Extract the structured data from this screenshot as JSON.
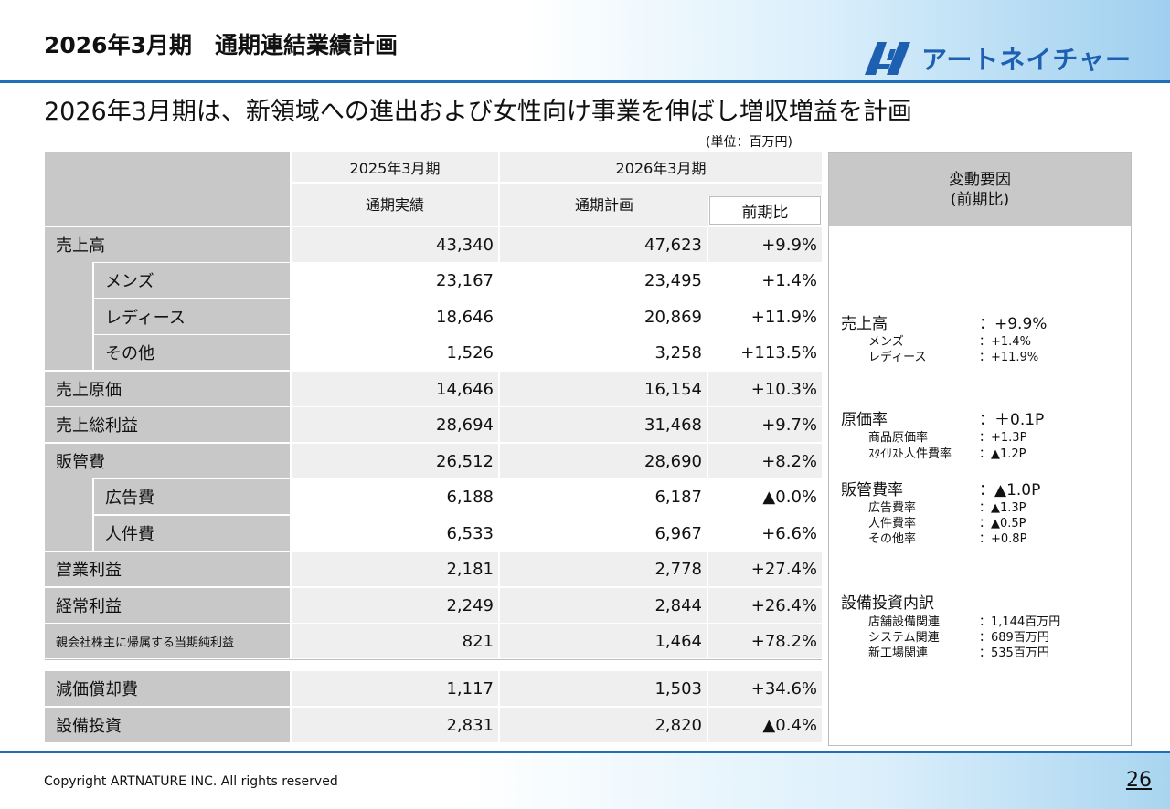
{
  "header": {
    "title": "2026年3月期　通期連結業績計画",
    "logo_text": "アートネイチャー",
    "logo_mark": "AN-logo-icon"
  },
  "subtitle": "2026年3月期は、新領域への進出および女性向け事業を伸ばし増収増益を計画",
  "unit_note": "(単位：百万円)",
  "table": {
    "col_headers": {
      "fy2025": "2025年3月期",
      "fy2026": "2026年3月期",
      "actual": "通期実績",
      "plan": "通期計画",
      "yoy": "前期比"
    },
    "rows": [
      {
        "label": "売上高",
        "actual": "43,340",
        "plan": "47,623",
        "yoy": "+9.9%"
      },
      {
        "label": "メンズ",
        "actual": "23,167",
        "plan": "23,495",
        "yoy": "+1.4%"
      },
      {
        "label": "レディース",
        "actual": "18,646",
        "plan": "20,869",
        "yoy": "+11.9%"
      },
      {
        "label": "その他",
        "actual": "1,526",
        "plan": "3,258",
        "yoy": "+113.5%"
      },
      {
        "label": "売上原価",
        "actual": "14,646",
        "plan": "16,154",
        "yoy": "+10.3%"
      },
      {
        "label": "売上総利益",
        "actual": "28,694",
        "plan": "31,468",
        "yoy": "+9.7%"
      },
      {
        "label": "販管費",
        "actual": "26,512",
        "plan": "28,690",
        "yoy": "+8.2%"
      },
      {
        "label": "広告費",
        "actual": "6,188",
        "plan": "6,187",
        "yoy": "▲0.0%"
      },
      {
        "label": "人件費",
        "actual": "6,533",
        "plan": "6,967",
        "yoy": "+6.6%"
      },
      {
        "label": "営業利益",
        "actual": "2,181",
        "plan": "2,778",
        "yoy": "+27.4%"
      },
      {
        "label": "経常利益",
        "actual": "2,249",
        "plan": "2,844",
        "yoy": "+26.4%"
      },
      {
        "label": "親会社株主に帰属する当期純利益",
        "actual": "821",
        "plan": "1,464",
        "yoy": "+78.2%"
      },
      {
        "label": "減価償却費",
        "actual": "1,117",
        "plan": "1,503",
        "yoy": "+34.6%"
      },
      {
        "label": "設備投資",
        "actual": "2,831",
        "plan": "2,820",
        "yoy": "▲0.4%"
      }
    ]
  },
  "factors": {
    "title": "変動要因",
    "subtitle": "(前期比)",
    "sales": {
      "label": "売上高",
      "value": "：+9.9%",
      "items": [
        {
          "label": "メンズ",
          "value": "：+1.4%"
        },
        {
          "label": "レディース",
          "value": "：+11.9%"
        }
      ]
    },
    "cost_rate": {
      "label": "原価率",
      "value": "：＋0.1P",
      "items": [
        {
          "label": "商品原価率",
          "value": "：+1.3P"
        },
        {
          "label": "ｽﾀｲﾘｽﾄ人件費率",
          "value": "：▲1.2P"
        }
      ]
    },
    "sga_rate": {
      "label": "販管費率",
      "value": "：▲1.0P",
      "items": [
        {
          "label": "広告費率",
          "value": "：▲1.3P"
        },
        {
          "label": "人件費率",
          "value": "：▲0.5P"
        },
        {
          "label": "その他率",
          "value": "：+0.8P"
        }
      ]
    },
    "capex": {
      "label": "設備投資内訳",
      "items": [
        {
          "label": "店舗設備関連",
          "value": "：1,144百万円"
        },
        {
          "label": "システム関連",
          "value": "：689百万円"
        },
        {
          "label": "新工場関連",
          "value": "：535百万円"
        }
      ]
    }
  },
  "footer": {
    "copyright": "Copyright ARTNATURE INC. All rights reserved",
    "page": "26"
  }
}
